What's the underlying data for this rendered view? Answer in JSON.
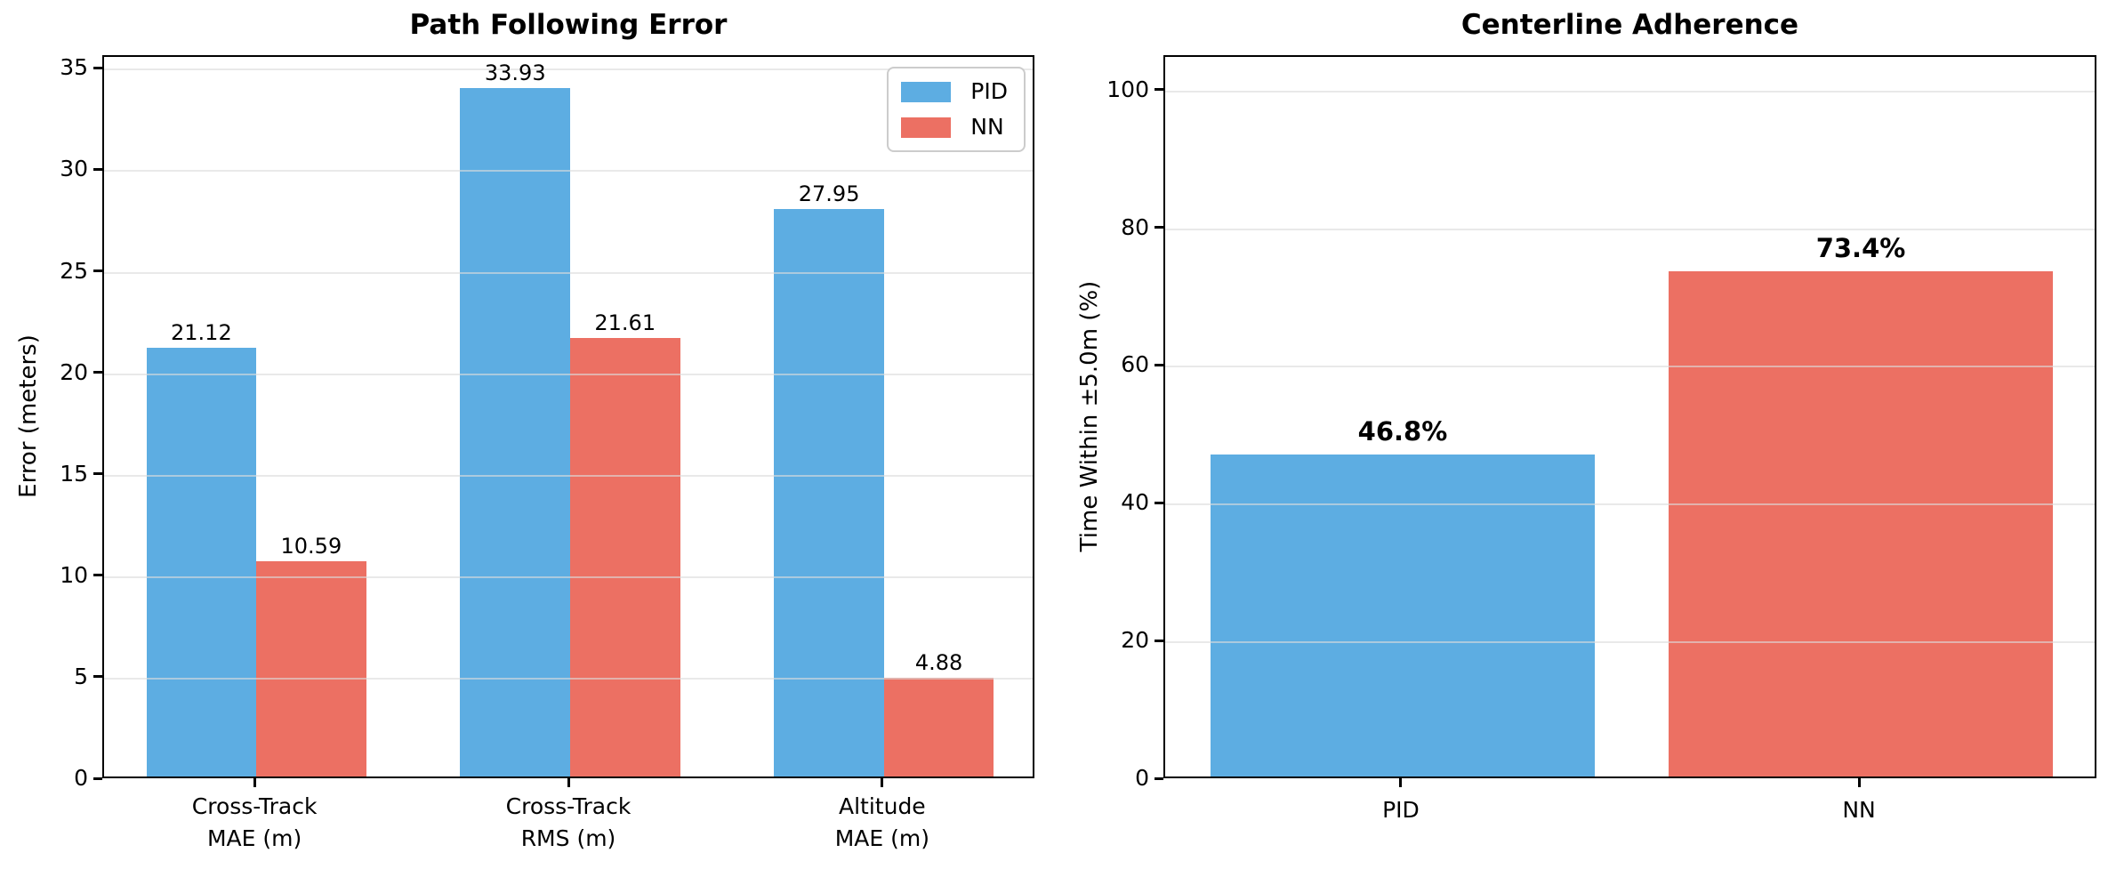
{
  "colors": {
    "pid": "#5DADE2",
    "nn": "#EC7063",
    "grid": "#DCDCDC",
    "spine": "#000000",
    "legend_border": "#CCCCCC",
    "background": "#FFFFFF",
    "text": "#000000"
  },
  "chart_data": [
    {
      "type": "bar",
      "title": "Path Following Error",
      "xlabel": "",
      "ylabel": "Error (meters)",
      "categories": [
        "Cross-Track\nMAE (m)",
        "Cross-Track\nRMS (m)",
        "Altitude\nMAE (m)"
      ],
      "series": [
        {
          "name": "PID",
          "color": "pid",
          "values": [
            21.12,
            33.93,
            27.95
          ],
          "value_labels": [
            "21.12",
            "33.93",
            "27.95"
          ]
        },
        {
          "name": "NN",
          "color": "nn",
          "values": [
            10.59,
            21.61,
            4.88
          ],
          "value_labels": [
            "10.59",
            "21.61",
            "4.88"
          ]
        }
      ],
      "yticks": [
        0,
        5,
        10,
        15,
        20,
        25,
        30,
        35
      ],
      "ylim": [
        0,
        35.63
      ],
      "grid": true,
      "legend": {
        "position": "upper right",
        "entries": [
          {
            "label": "PID",
            "color": "pid"
          },
          {
            "label": "NN",
            "color": "nn"
          }
        ]
      }
    },
    {
      "type": "bar",
      "title": "Centerline Adherence",
      "xlabel": "",
      "ylabel": "Time Within ±5.0m (%)",
      "categories": [
        "PID",
        "NN"
      ],
      "series": [
        {
          "name": "Time Within ±5.0m",
          "colors": [
            "pid",
            "nn"
          ],
          "values": [
            46.8,
            73.4
          ],
          "value_labels": [
            "46.8%",
            "73.4%"
          ]
        }
      ],
      "yticks": [
        0,
        20,
        40,
        60,
        80,
        100
      ],
      "ylim": [
        0,
        105
      ],
      "grid": true,
      "legend": null
    }
  ]
}
